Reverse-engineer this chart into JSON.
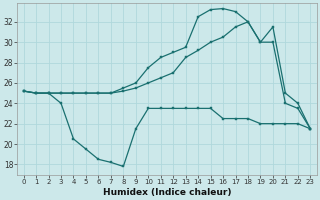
{
  "xlabel": "Humidex (Indice chaleur)",
  "background_color": "#cce8ea",
  "grid_color": "#b0d8dc",
  "line_color": "#1a7070",
  "xlim": [
    -0.5,
    23.5
  ],
  "ylim": [
    17.0,
    33.8
  ],
  "yticks": [
    18,
    20,
    22,
    24,
    26,
    28,
    30,
    32
  ],
  "xticks": [
    0,
    1,
    2,
    3,
    4,
    5,
    6,
    7,
    8,
    9,
    10,
    11,
    12,
    13,
    14,
    15,
    16,
    17,
    18,
    19,
    20,
    21,
    22,
    23
  ],
  "line_upper_x": [
    0,
    1,
    2,
    3,
    4,
    5,
    6,
    7,
    8,
    9,
    10,
    11,
    12,
    13,
    14,
    15,
    16,
    17,
    18,
    19,
    20,
    21,
    22,
    23
  ],
  "line_upper_y": [
    25.2,
    25.0,
    25.0,
    25.0,
    25.0,
    25.0,
    25.0,
    25.0,
    25.5,
    26.0,
    27.5,
    28.5,
    29.0,
    29.5,
    32.5,
    33.2,
    33.3,
    33.0,
    32.0,
    30.0,
    31.5,
    25.0,
    24.0,
    21.5
  ],
  "line_mid_x": [
    0,
    1,
    2,
    3,
    4,
    5,
    6,
    7,
    8,
    9,
    10,
    11,
    12,
    13,
    14,
    15,
    16,
    17,
    18,
    19,
    20,
    21,
    22,
    23
  ],
  "line_mid_y": [
    25.2,
    25.0,
    25.0,
    25.0,
    25.0,
    25.0,
    25.0,
    25.0,
    25.2,
    25.5,
    26.0,
    26.5,
    27.0,
    28.5,
    29.2,
    30.0,
    30.5,
    31.5,
    32.0,
    30.0,
    30.0,
    24.0,
    23.5,
    21.5
  ],
  "line_lower_x": [
    0,
    1,
    2,
    3,
    4,
    5,
    6,
    7,
    8,
    9,
    10,
    11,
    12,
    13,
    14,
    15,
    16,
    17,
    18,
    19,
    20,
    21,
    22,
    23
  ],
  "line_lower_y": [
    25.2,
    25.0,
    25.0,
    24.0,
    20.5,
    19.5,
    18.5,
    18.2,
    17.8,
    21.5,
    23.5,
    23.5,
    23.5,
    23.5,
    23.5,
    23.5,
    22.5,
    22.5,
    22.5,
    22.0,
    22.0,
    22.0,
    22.0,
    21.5
  ]
}
